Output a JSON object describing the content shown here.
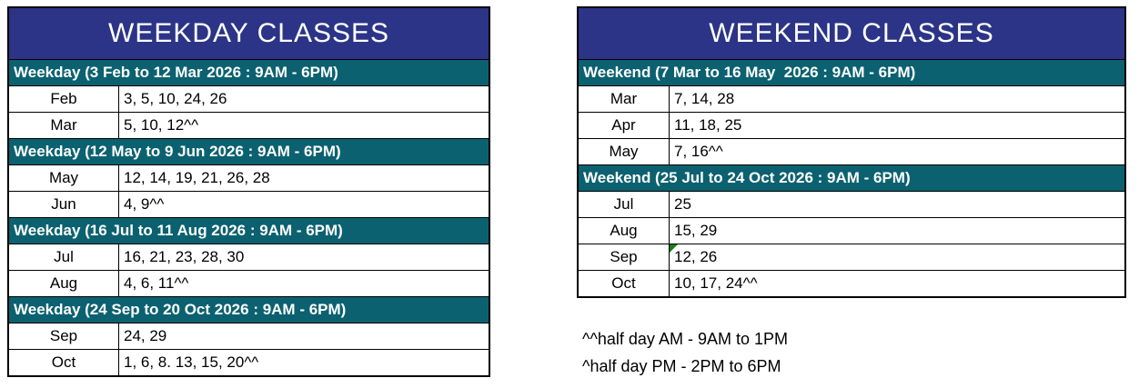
{
  "colors": {
    "title_bg": "#2C3487",
    "section_bg": "#0B6170",
    "border": "#000000",
    "header_text": "#FFFFFF",
    "body_text": "#000000",
    "error_indicator": "#1E7A1E",
    "background": "#FFFFFF"
  },
  "weekday_table": {
    "title": "WEEKDAY CLASSES",
    "sections": [
      {
        "header": "Weekday (3 Feb to 12 Mar 2026 : 9AM - 6PM)",
        "rows": [
          {
            "month": "Feb",
            "dates": "3, 5, 10, 24, 26"
          },
          {
            "month": "Mar",
            "dates": "5, 10, 12^^"
          }
        ]
      },
      {
        "header": "Weekday (12 May to 9 Jun 2026 : 9AM - 6PM)",
        "rows": [
          {
            "month": "May",
            "dates": "12, 14, 19, 21, 26, 28"
          },
          {
            "month": "Jun",
            "dates": "4, 9^^"
          }
        ]
      },
      {
        "header": "Weekday (16 Jul to 11 Aug 2026 : 9AM - 6PM)",
        "rows": [
          {
            "month": "Jul",
            "dates": "16, 21, 23, 28, 30"
          },
          {
            "month": "Aug",
            "dates": "4, 6, 11^^"
          }
        ]
      },
      {
        "header": "Weekday (24 Sep to 20 Oct 2026 : 9AM - 6PM)",
        "rows": [
          {
            "month": "Sep",
            "dates": "24, 29"
          },
          {
            "month": "Oct",
            "dates": "1, 6, 8. 13, 15, 20^^"
          }
        ]
      }
    ]
  },
  "weekend_table": {
    "title": "WEEKEND CLASSES",
    "sections": [
      {
        "header": "Weekend (7 Mar to 16 May  2026 : 9AM - 6PM)",
        "rows": [
          {
            "month": "Mar",
            "dates": "7, 14, 28"
          },
          {
            "month": "Apr",
            "dates": "11, 18, 25"
          },
          {
            "month": "May",
            "dates": "7, 16^^"
          }
        ]
      },
      {
        "header": "Weekend (25 Jul to 24 Oct 2026 : 9AM - 6PM)",
        "rows": [
          {
            "month": "Jul",
            "dates": "25"
          },
          {
            "month": "Aug",
            "dates": "15, 29"
          },
          {
            "month": "Sep",
            "dates": "12, 26",
            "error_indicator": true
          },
          {
            "month": "Oct",
            "dates": "10, 17, 24^^"
          }
        ]
      }
    ]
  },
  "footnotes": [
    "^^half day AM - 9AM to 1PM",
    "^half day PM - 2PM to 6PM"
  ]
}
